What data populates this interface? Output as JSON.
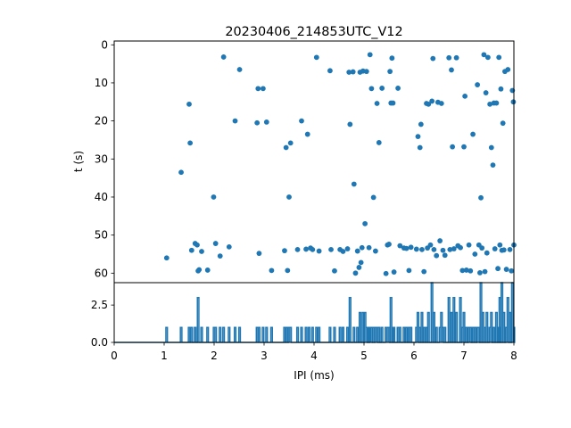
{
  "chart_data": [
    {
      "type": "scatter",
      "title": "20230406_214853UTC_V12",
      "xlabel": "",
      "ylabel": "t (s)",
      "xlim": [
        0,
        8
      ],
      "ylim": [
        62.5,
        -1
      ],
      "y_axis_inverted": true,
      "yticks": [
        0,
        10,
        20,
        30,
        40,
        50,
        60
      ],
      "grid": false,
      "marker_color": "#1f77b4",
      "points": [
        [
          1.05,
          56.0
        ],
        [
          1.34,
          33.5
        ],
        [
          1.5,
          15.6
        ],
        [
          1.52,
          25.8
        ],
        [
          1.55,
          54.0
        ],
        [
          1.62,
          52.2
        ],
        [
          1.66,
          52.6
        ],
        [
          1.68,
          59.4
        ],
        [
          1.7,
          59.1
        ],
        [
          1.75,
          54.3
        ],
        [
          1.87,
          59.2
        ],
        [
          1.99,
          40.0
        ],
        [
          2.03,
          52.2
        ],
        [
          2.12,
          55.5
        ],
        [
          2.19,
          3.2
        ],
        [
          2.3,
          53.1
        ],
        [
          2.42,
          20.0
        ],
        [
          2.51,
          6.5
        ],
        [
          2.86,
          20.5
        ],
        [
          2.88,
          11.5
        ],
        [
          2.9,
          54.8
        ],
        [
          2.98,
          11.5
        ],
        [
          3.05,
          20.3
        ],
        [
          3.15,
          59.3
        ],
        [
          3.41,
          54.1
        ],
        [
          3.44,
          27.0
        ],
        [
          3.47,
          59.3
        ],
        [
          3.5,
          40.0
        ],
        [
          3.53,
          25.8
        ],
        [
          3.67,
          53.8
        ],
        [
          3.75,
          20.0
        ],
        [
          3.84,
          53.7
        ],
        [
          3.87,
          23.5
        ],
        [
          3.93,
          53.4
        ],
        [
          3.97,
          53.8
        ],
        [
          4.05,
          3.3
        ],
        [
          4.1,
          54.2
        ],
        [
          4.32,
          6.8
        ],
        [
          4.34,
          53.8
        ],
        [
          4.41,
          59.4
        ],
        [
          4.52,
          53.8
        ],
        [
          4.58,
          54.3
        ],
        [
          4.67,
          53.6
        ],
        [
          4.7,
          7.2
        ],
        [
          4.72,
          20.9
        ],
        [
          4.78,
          7.1
        ],
        [
          4.8,
          36.6
        ],
        [
          4.83,
          60.0
        ],
        [
          4.87,
          54.2
        ],
        [
          4.9,
          58.5
        ],
        [
          4.92,
          7.2
        ],
        [
          4.94,
          57.2
        ],
        [
          4.96,
          53.3
        ],
        [
          4.98,
          6.9
        ],
        [
          5.02,
          47.0
        ],
        [
          5.05,
          7.0
        ],
        [
          5.1,
          53.3
        ],
        [
          5.12,
          2.6
        ],
        [
          5.15,
          11.5
        ],
        [
          5.19,
          40.1
        ],
        [
          5.23,
          54.2
        ],
        [
          5.26,
          15.4
        ],
        [
          5.3,
          25.7
        ],
        [
          5.36,
          11.4
        ],
        [
          5.44,
          60.1
        ],
        [
          5.47,
          52.6
        ],
        [
          5.5,
          52.4
        ],
        [
          5.52,
          7.0
        ],
        [
          5.54,
          15.3
        ],
        [
          5.56,
          3.5
        ],
        [
          5.58,
          15.3
        ],
        [
          5.6,
          59.7
        ],
        [
          5.68,
          11.4
        ],
        [
          5.72,
          52.8
        ],
        [
          5.8,
          53.4
        ],
        [
          5.85,
          53.5
        ],
        [
          5.9,
          59.3
        ],
        [
          5.94,
          53.2
        ],
        [
          6.05,
          53.7
        ],
        [
          6.08,
          24.1
        ],
        [
          6.12,
          27.0
        ],
        [
          6.14,
          20.9
        ],
        [
          6.16,
          53.8
        ],
        [
          6.2,
          59.6
        ],
        [
          6.25,
          15.4
        ],
        [
          6.27,
          53.4
        ],
        [
          6.29,
          15.6
        ],
        [
          6.33,
          52.6
        ],
        [
          6.36,
          14.8
        ],
        [
          6.38,
          3.6
        ],
        [
          6.4,
          53.8
        ],
        [
          6.45,
          55.4
        ],
        [
          6.48,
          15.1
        ],
        [
          6.52,
          51.5
        ],
        [
          6.55,
          15.4
        ],
        [
          6.58,
          54.0
        ],
        [
          6.62,
          55.3
        ],
        [
          6.7,
          3.4
        ],
        [
          6.72,
          53.8
        ],
        [
          6.75,
          6.6
        ],
        [
          6.77,
          26.8
        ],
        [
          6.8,
          53.6
        ],
        [
          6.85,
          3.4
        ],
        [
          6.88,
          52.8
        ],
        [
          6.93,
          53.3
        ],
        [
          6.97,
          59.3
        ],
        [
          7.0,
          26.8
        ],
        [
          7.02,
          13.5
        ],
        [
          7.05,
          59.2
        ],
        [
          7.1,
          52.6
        ],
        [
          7.13,
          59.4
        ],
        [
          7.18,
          23.5
        ],
        [
          7.22,
          55.0
        ],
        [
          7.27,
          10.5
        ],
        [
          7.3,
          52.6
        ],
        [
          7.32,
          59.9
        ],
        [
          7.34,
          40.2
        ],
        [
          7.36,
          53.4
        ],
        [
          7.4,
          2.6
        ],
        [
          7.42,
          59.6
        ],
        [
          7.44,
          12.6
        ],
        [
          7.46,
          54.7
        ],
        [
          7.48,
          3.3
        ],
        [
          7.52,
          15.6
        ],
        [
          7.55,
          27.0
        ],
        [
          7.58,
          31.6
        ],
        [
          7.6,
          15.3
        ],
        [
          7.62,
          53.6
        ],
        [
          7.65,
          15.3
        ],
        [
          7.68,
          58.8
        ],
        [
          7.7,
          3.3
        ],
        [
          7.72,
          52.6
        ],
        [
          7.74,
          11.6
        ],
        [
          7.76,
          54.0
        ],
        [
          7.78,
          20.6
        ],
        [
          7.8,
          53.9
        ],
        [
          7.82,
          7.0
        ],
        [
          7.85,
          59.0
        ],
        [
          7.88,
          6.5
        ],
        [
          7.92,
          53.8
        ],
        [
          7.95,
          59.4
        ],
        [
          7.97,
          12.0
        ],
        [
          7.99,
          15.0
        ],
        [
          8.0,
          52.6
        ]
      ]
    },
    {
      "type": "line",
      "xlabel": "IPI (ms)",
      "ylabel": "",
      "xlim": [
        0,
        8
      ],
      "ylim": [
        0,
        4
      ],
      "xticks": [
        0,
        1,
        2,
        3,
        4,
        5,
        6,
        7,
        8
      ],
      "yticks": [
        0.0,
        2.5
      ],
      "ytick_labels": [
        "0.0",
        "2.5"
      ],
      "line_color": "#1f77b4",
      "peaks": [
        [
          1.05,
          1
        ],
        [
          1.34,
          1
        ],
        [
          1.5,
          1
        ],
        [
          1.55,
          1
        ],
        [
          1.62,
          1
        ],
        [
          1.68,
          3
        ],
        [
          1.75,
          1
        ],
        [
          1.87,
          1
        ],
        [
          2.0,
          1
        ],
        [
          2.03,
          1
        ],
        [
          2.12,
          1
        ],
        [
          2.19,
          1
        ],
        [
          2.3,
          1
        ],
        [
          2.42,
          1
        ],
        [
          2.51,
          1
        ],
        [
          2.86,
          1
        ],
        [
          2.9,
          1
        ],
        [
          2.98,
          1
        ],
        [
          3.05,
          1
        ],
        [
          3.15,
          1
        ],
        [
          3.41,
          1
        ],
        [
          3.45,
          1
        ],
        [
          3.5,
          1
        ],
        [
          3.53,
          1
        ],
        [
          3.67,
          1
        ],
        [
          3.75,
          1
        ],
        [
          3.84,
          1
        ],
        [
          3.9,
          1
        ],
        [
          3.97,
          1
        ],
        [
          4.05,
          1
        ],
        [
          4.1,
          1
        ],
        [
          4.32,
          1
        ],
        [
          4.41,
          1
        ],
        [
          4.52,
          1
        ],
        [
          4.58,
          1
        ],
        [
          4.67,
          1
        ],
        [
          4.72,
          3
        ],
        [
          4.8,
          1
        ],
        [
          4.87,
          1
        ],
        [
          4.92,
          2
        ],
        [
          4.98,
          2
        ],
        [
          5.02,
          2
        ],
        [
          5.05,
          1
        ],
        [
          5.1,
          1
        ],
        [
          5.12,
          1
        ],
        [
          5.15,
          1
        ],
        [
          5.19,
          1
        ],
        [
          5.23,
          1
        ],
        [
          5.26,
          1
        ],
        [
          5.3,
          1
        ],
        [
          5.36,
          1
        ],
        [
          5.44,
          1
        ],
        [
          5.47,
          1
        ],
        [
          5.5,
          1
        ],
        [
          5.54,
          3
        ],
        [
          5.58,
          1
        ],
        [
          5.6,
          1
        ],
        [
          5.68,
          1
        ],
        [
          5.72,
          1
        ],
        [
          5.8,
          1
        ],
        [
          5.85,
          1
        ],
        [
          5.9,
          1
        ],
        [
          5.94,
          1
        ],
        [
          6.05,
          1
        ],
        [
          6.08,
          2
        ],
        [
          6.12,
          1
        ],
        [
          6.16,
          2
        ],
        [
          6.2,
          1
        ],
        [
          6.25,
          1
        ],
        [
          6.29,
          2
        ],
        [
          6.36,
          4
        ],
        [
          6.4,
          2
        ],
        [
          6.45,
          1
        ],
        [
          6.52,
          1
        ],
        [
          6.55,
          2
        ],
        [
          6.58,
          1
        ],
        [
          6.62,
          1
        ],
        [
          6.7,
          3
        ],
        [
          6.75,
          2
        ],
        [
          6.8,
          3
        ],
        [
          6.85,
          2
        ],
        [
          6.93,
          3
        ],
        [
          6.97,
          1
        ],
        [
          7.0,
          2
        ],
        [
          7.05,
          1
        ],
        [
          7.1,
          1
        ],
        [
          7.13,
          1
        ],
        [
          7.18,
          1
        ],
        [
          7.22,
          1
        ],
        [
          7.27,
          1
        ],
        [
          7.3,
          1
        ],
        [
          7.34,
          4
        ],
        [
          7.38,
          2
        ],
        [
          7.42,
          1
        ],
        [
          7.46,
          2
        ],
        [
          7.52,
          1
        ],
        [
          7.55,
          2
        ],
        [
          7.6,
          1
        ],
        [
          7.65,
          2
        ],
        [
          7.7,
          1
        ],
        [
          7.72,
          3
        ],
        [
          7.76,
          4
        ],
        [
          7.8,
          2
        ],
        [
          7.85,
          1
        ],
        [
          7.88,
          3
        ],
        [
          7.92,
          2
        ],
        [
          7.97,
          4
        ],
        [
          8.0,
          1
        ]
      ]
    }
  ]
}
